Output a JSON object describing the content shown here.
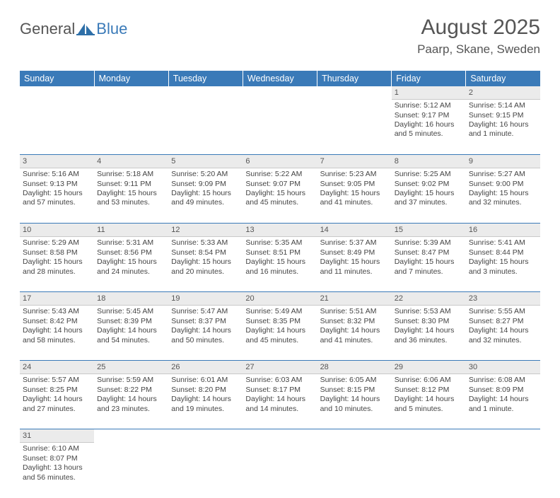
{
  "logo": {
    "part1": "General",
    "part2": "Blue"
  },
  "title": "August 2025",
  "location": "Paarp, Skane, Sweden",
  "colors": {
    "header_bg": "#3a7ab8",
    "header_text": "#ffffff",
    "daynum_bg": "#ebebeb",
    "row_border": "#3a7ab8",
    "text": "#444444",
    "logo_blue": "#3a7ab8",
    "logo_gray": "#555555"
  },
  "dayNames": [
    "Sunday",
    "Monday",
    "Tuesday",
    "Wednesday",
    "Thursday",
    "Friday",
    "Saturday"
  ],
  "weeks": [
    {
      "nums": [
        "",
        "",
        "",
        "",
        "",
        "1",
        "2"
      ],
      "cells": [
        null,
        null,
        null,
        null,
        null,
        {
          "sunrise": "Sunrise: 5:12 AM",
          "sunset": "Sunset: 9:17 PM",
          "day1": "Daylight: 16 hours",
          "day2": "and 5 minutes."
        },
        {
          "sunrise": "Sunrise: 5:14 AM",
          "sunset": "Sunset: 9:15 PM",
          "day1": "Daylight: 16 hours",
          "day2": "and 1 minute."
        }
      ]
    },
    {
      "nums": [
        "3",
        "4",
        "5",
        "6",
        "7",
        "8",
        "9"
      ],
      "cells": [
        {
          "sunrise": "Sunrise: 5:16 AM",
          "sunset": "Sunset: 9:13 PM",
          "day1": "Daylight: 15 hours",
          "day2": "and 57 minutes."
        },
        {
          "sunrise": "Sunrise: 5:18 AM",
          "sunset": "Sunset: 9:11 PM",
          "day1": "Daylight: 15 hours",
          "day2": "and 53 minutes."
        },
        {
          "sunrise": "Sunrise: 5:20 AM",
          "sunset": "Sunset: 9:09 PM",
          "day1": "Daylight: 15 hours",
          "day2": "and 49 minutes."
        },
        {
          "sunrise": "Sunrise: 5:22 AM",
          "sunset": "Sunset: 9:07 PM",
          "day1": "Daylight: 15 hours",
          "day2": "and 45 minutes."
        },
        {
          "sunrise": "Sunrise: 5:23 AM",
          "sunset": "Sunset: 9:05 PM",
          "day1": "Daylight: 15 hours",
          "day2": "and 41 minutes."
        },
        {
          "sunrise": "Sunrise: 5:25 AM",
          "sunset": "Sunset: 9:02 PM",
          "day1": "Daylight: 15 hours",
          "day2": "and 37 minutes."
        },
        {
          "sunrise": "Sunrise: 5:27 AM",
          "sunset": "Sunset: 9:00 PM",
          "day1": "Daylight: 15 hours",
          "day2": "and 32 minutes."
        }
      ]
    },
    {
      "nums": [
        "10",
        "11",
        "12",
        "13",
        "14",
        "15",
        "16"
      ],
      "cells": [
        {
          "sunrise": "Sunrise: 5:29 AM",
          "sunset": "Sunset: 8:58 PM",
          "day1": "Daylight: 15 hours",
          "day2": "and 28 minutes."
        },
        {
          "sunrise": "Sunrise: 5:31 AM",
          "sunset": "Sunset: 8:56 PM",
          "day1": "Daylight: 15 hours",
          "day2": "and 24 minutes."
        },
        {
          "sunrise": "Sunrise: 5:33 AM",
          "sunset": "Sunset: 8:54 PM",
          "day1": "Daylight: 15 hours",
          "day2": "and 20 minutes."
        },
        {
          "sunrise": "Sunrise: 5:35 AM",
          "sunset": "Sunset: 8:51 PM",
          "day1": "Daylight: 15 hours",
          "day2": "and 16 minutes."
        },
        {
          "sunrise": "Sunrise: 5:37 AM",
          "sunset": "Sunset: 8:49 PM",
          "day1": "Daylight: 15 hours",
          "day2": "and 11 minutes."
        },
        {
          "sunrise": "Sunrise: 5:39 AM",
          "sunset": "Sunset: 8:47 PM",
          "day1": "Daylight: 15 hours",
          "day2": "and 7 minutes."
        },
        {
          "sunrise": "Sunrise: 5:41 AM",
          "sunset": "Sunset: 8:44 PM",
          "day1": "Daylight: 15 hours",
          "day2": "and 3 minutes."
        }
      ]
    },
    {
      "nums": [
        "17",
        "18",
        "19",
        "20",
        "21",
        "22",
        "23"
      ],
      "cells": [
        {
          "sunrise": "Sunrise: 5:43 AM",
          "sunset": "Sunset: 8:42 PM",
          "day1": "Daylight: 14 hours",
          "day2": "and 58 minutes."
        },
        {
          "sunrise": "Sunrise: 5:45 AM",
          "sunset": "Sunset: 8:39 PM",
          "day1": "Daylight: 14 hours",
          "day2": "and 54 minutes."
        },
        {
          "sunrise": "Sunrise: 5:47 AM",
          "sunset": "Sunset: 8:37 PM",
          "day1": "Daylight: 14 hours",
          "day2": "and 50 minutes."
        },
        {
          "sunrise": "Sunrise: 5:49 AM",
          "sunset": "Sunset: 8:35 PM",
          "day1": "Daylight: 14 hours",
          "day2": "and 45 minutes."
        },
        {
          "sunrise": "Sunrise: 5:51 AM",
          "sunset": "Sunset: 8:32 PM",
          "day1": "Daylight: 14 hours",
          "day2": "and 41 minutes."
        },
        {
          "sunrise": "Sunrise: 5:53 AM",
          "sunset": "Sunset: 8:30 PM",
          "day1": "Daylight: 14 hours",
          "day2": "and 36 minutes."
        },
        {
          "sunrise": "Sunrise: 5:55 AM",
          "sunset": "Sunset: 8:27 PM",
          "day1": "Daylight: 14 hours",
          "day2": "and 32 minutes."
        }
      ]
    },
    {
      "nums": [
        "24",
        "25",
        "26",
        "27",
        "28",
        "29",
        "30"
      ],
      "cells": [
        {
          "sunrise": "Sunrise: 5:57 AM",
          "sunset": "Sunset: 8:25 PM",
          "day1": "Daylight: 14 hours",
          "day2": "and 27 minutes."
        },
        {
          "sunrise": "Sunrise: 5:59 AM",
          "sunset": "Sunset: 8:22 PM",
          "day1": "Daylight: 14 hours",
          "day2": "and 23 minutes."
        },
        {
          "sunrise": "Sunrise: 6:01 AM",
          "sunset": "Sunset: 8:20 PM",
          "day1": "Daylight: 14 hours",
          "day2": "and 19 minutes."
        },
        {
          "sunrise": "Sunrise: 6:03 AM",
          "sunset": "Sunset: 8:17 PM",
          "day1": "Daylight: 14 hours",
          "day2": "and 14 minutes."
        },
        {
          "sunrise": "Sunrise: 6:05 AM",
          "sunset": "Sunset: 8:15 PM",
          "day1": "Daylight: 14 hours",
          "day2": "and 10 minutes."
        },
        {
          "sunrise": "Sunrise: 6:06 AM",
          "sunset": "Sunset: 8:12 PM",
          "day1": "Daylight: 14 hours",
          "day2": "and 5 minutes."
        },
        {
          "sunrise": "Sunrise: 6:08 AM",
          "sunset": "Sunset: 8:09 PM",
          "day1": "Daylight: 14 hours",
          "day2": "and 1 minute."
        }
      ]
    },
    {
      "nums": [
        "31",
        "",
        "",
        "",
        "",
        "",
        ""
      ],
      "cells": [
        {
          "sunrise": "Sunrise: 6:10 AM",
          "sunset": "Sunset: 8:07 PM",
          "day1": "Daylight: 13 hours",
          "day2": "and 56 minutes."
        },
        null,
        null,
        null,
        null,
        null,
        null
      ]
    }
  ]
}
